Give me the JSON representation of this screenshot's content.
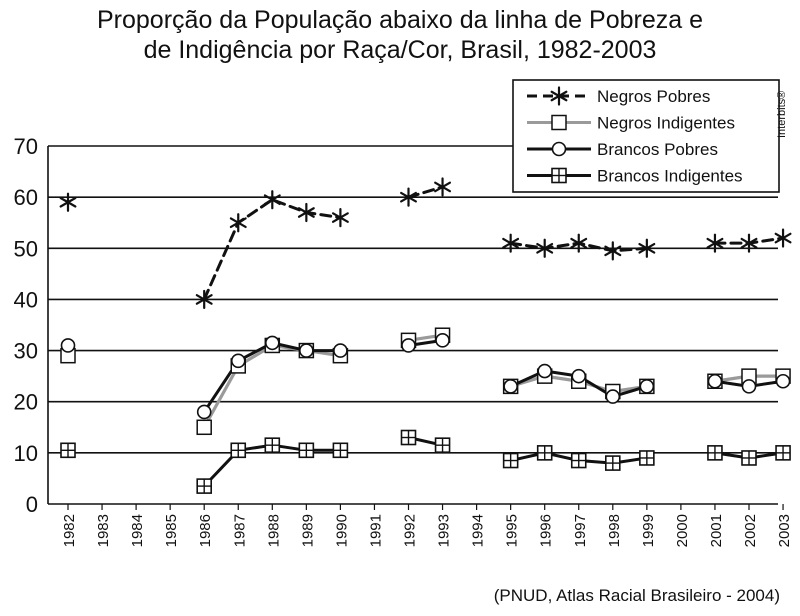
{
  "title_line1": "Proporção da População abaixo da linha de Pobreza e",
  "title_line2": "de Indigência por Raça/Cor, Brasil, 1982-2003",
  "source": "(PNUD, Atlas Racial Brasileiro - 2004)",
  "credit": "Interbits®",
  "chart_data": {
    "type": "line",
    "ylim": [
      0,
      70
    ],
    "yticks": [
      0,
      10,
      20,
      30,
      40,
      50,
      60,
      70
    ],
    "categories": [
      "1982",
      "1983",
      "1984",
      "1985",
      "1986",
      "1987",
      "1988",
      "1989",
      "1990",
      "1991",
      "1992",
      "1993",
      "1994",
      "1995",
      "1996",
      "1997",
      "1998",
      "1999",
      "2000",
      "2001",
      "2002",
      "2003"
    ],
    "legend_position": "top-right",
    "grid": "horizontal",
    "series": [
      {
        "name": "Negros Pobres",
        "marker": "star",
        "color": "#111111",
        "dash": true,
        "values": [
          59,
          null,
          null,
          null,
          40,
          55,
          59.5,
          57,
          56,
          null,
          60,
          62,
          null,
          51,
          50,
          51,
          49.5,
          50,
          null,
          51,
          51,
          52
        ]
      },
      {
        "name": "Negros Indigentes",
        "marker": "square",
        "color": "#9a9a9a",
        "dash": false,
        "values": [
          29,
          null,
          null,
          null,
          15,
          27,
          31,
          30,
          29,
          null,
          32,
          33,
          null,
          23,
          25,
          24,
          22,
          23,
          null,
          24,
          25,
          25
        ]
      },
      {
        "name": "Brancos Pobres",
        "marker": "circle",
        "color": "#111111",
        "dash": false,
        "values": [
          31,
          null,
          null,
          null,
          18,
          28,
          31.5,
          30,
          30,
          null,
          31,
          32,
          null,
          23,
          26,
          25,
          21,
          23,
          null,
          24,
          23,
          24
        ]
      },
      {
        "name": "Brancos Indigentes",
        "marker": "crossed-square",
        "color": "#111111",
        "dash": false,
        "values": [
          10.5,
          null,
          null,
          null,
          3.5,
          10.5,
          11.5,
          10.5,
          10.5,
          null,
          13,
          11.5,
          null,
          8.5,
          10,
          8.5,
          8,
          9,
          null,
          10,
          9,
          10
        ]
      }
    ]
  }
}
